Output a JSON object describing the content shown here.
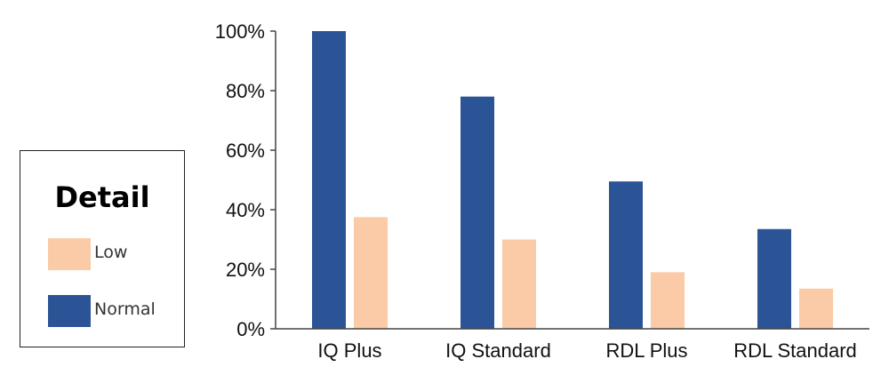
{
  "legend": {
    "title": "Detail",
    "items": [
      {
        "label": "Low",
        "color": "#fbcaa6"
      },
      {
        "label": "Normal",
        "color": "#2b5497"
      }
    ]
  },
  "chart_data": {
    "type": "bar",
    "categories": [
      "IQ Plus",
      "IQ Standard",
      "RDL Plus",
      "RDL Standard"
    ],
    "series": [
      {
        "name": "Normal",
        "color": "#2b5497",
        "values": [
          100,
          78,
          49.5,
          33.5
        ]
      },
      {
        "name": "Low",
        "color": "#fbcaa6",
        "values": [
          37.5,
          30,
          19,
          13.5
        ]
      }
    ],
    "y_ticks": [
      "0%",
      "20%",
      "40%",
      "60%",
      "80%",
      "100%"
    ],
    "ylim": [
      0,
      100
    ],
    "unit": "%",
    "grid": false,
    "legend_position": "left"
  }
}
